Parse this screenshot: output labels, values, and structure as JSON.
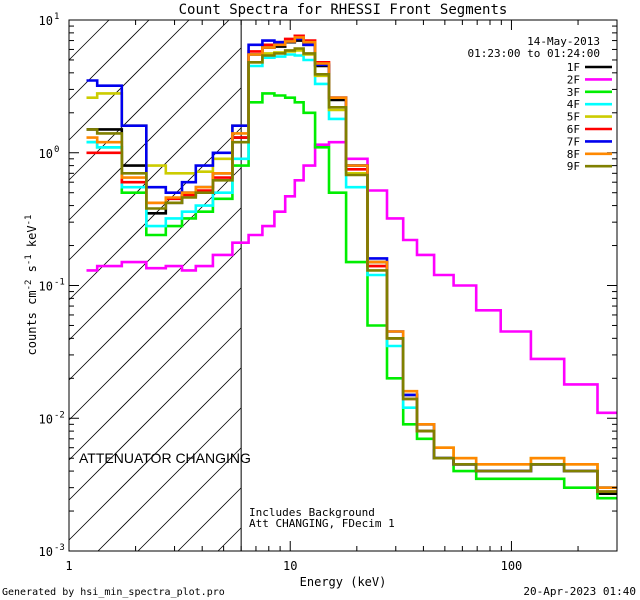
{
  "chart_data": {
    "type": "line",
    "title": "Count Spectra for RHESSI Front Segments",
    "xlabel": "Energy (keV)",
    "ylabel_parts": [
      "counts cm",
      "-2",
      " s",
      "-1",
      " keV",
      "-1"
    ],
    "xscale": "log",
    "yscale": "log",
    "xlim": [
      1,
      300
    ],
    "ylim": [
      0.001,
      10
    ],
    "x_ticks": [
      {
        "value": 1,
        "label": "1"
      },
      {
        "value": 10,
        "label": "10"
      },
      {
        "value": 100,
        "label": "100"
      }
    ],
    "y_ticks": [
      {
        "value": 0.001,
        "base": "10",
        "exp": "-3"
      },
      {
        "value": 0.01,
        "base": "10",
        "exp": "-2"
      },
      {
        "value": 0.1,
        "base": "10",
        "exp": "-1"
      },
      {
        "value": 1,
        "base": "10",
        "exp": "0"
      },
      {
        "value": 10,
        "base": "10",
        "exp": "1"
      }
    ],
    "date": "14-May-2013",
    "time_range": "01:23:00 to 01:24:00",
    "hatched_region": {
      "x_from": 1,
      "x_to": 6
    },
    "annotation": "ATTENUATOR CHANGING",
    "annotation_color": "#e00000",
    "footnote_lines": [
      "Includes Background",
      "Att CHANGING, FDecim 1"
    ],
    "series": [
      {
        "name": "1F",
        "color": "#000000",
        "x": [
          1.2,
          1.5,
          2,
          2.5,
          3,
          3.5,
          4,
          5,
          6,
          7,
          8,
          9,
          10,
          11,
          12,
          14,
          16,
          20,
          25,
          30,
          35,
          40,
          50,
          60,
          80,
          100,
          150,
          200,
          300
        ],
        "y": [
          1.5,
          1.5,
          0.8,
          0.35,
          0.42,
          0.5,
          0.55,
          0.7,
          1.3,
          5.5,
          6.2,
          6.3,
          6.8,
          7.0,
          6.5,
          4.5,
          2.5,
          0.8,
          0.15,
          0.04,
          0.015,
          0.008,
          0.005,
          0.0045,
          0.004,
          0.004,
          0.0045,
          0.004,
          0.0027
        ]
      },
      {
        "name": "2F",
        "color": "#ff00ff",
        "x": [
          1.2,
          1.5,
          2,
          2.5,
          3,
          3.5,
          4,
          5,
          6,
          7,
          8,
          9,
          10,
          11,
          12,
          14,
          16,
          20,
          25,
          30,
          35,
          40,
          50,
          60,
          80,
          100,
          150,
          200,
          300
        ],
        "y": [
          0.13,
          0.14,
          0.15,
          0.135,
          0.14,
          0.13,
          0.14,
          0.17,
          0.21,
          0.24,
          0.28,
          0.36,
          0.47,
          0.62,
          0.8,
          1.15,
          1.2,
          0.9,
          0.52,
          0.32,
          0.22,
          0.17,
          0.12,
          0.1,
          0.065,
          0.045,
          0.028,
          0.018,
          0.011
        ]
      },
      {
        "name": "3F",
        "color": "#00ee00",
        "x": [
          1.2,
          1.5,
          2,
          2.5,
          3,
          3.5,
          4,
          5,
          6,
          7,
          8,
          9,
          10,
          11,
          12,
          14,
          16,
          20,
          25,
          30,
          35,
          40,
          50,
          60,
          80,
          100,
          150,
          200,
          300
        ],
        "y": [
          1.2,
          1.1,
          0.5,
          0.24,
          0.28,
          0.32,
          0.36,
          0.45,
          0.8,
          2.4,
          2.8,
          2.7,
          2.6,
          2.4,
          2.0,
          1.1,
          0.5,
          0.15,
          0.05,
          0.02,
          0.009,
          0.007,
          0.005,
          0.004,
          0.0035,
          0.0035,
          0.0035,
          0.003,
          0.0025
        ]
      },
      {
        "name": "4F",
        "color": "#00ffff",
        "x": [
          1.2,
          1.5,
          2,
          2.5,
          3,
          3.5,
          4,
          5,
          6,
          7,
          8,
          9,
          10,
          11,
          12,
          14,
          16,
          20,
          25,
          30,
          35,
          40,
          50,
          60,
          80,
          100,
          150,
          200,
          300
        ],
        "y": [
          1.2,
          1.1,
          0.55,
          0.28,
          0.32,
          0.36,
          0.4,
          0.5,
          0.9,
          4.5,
          5.2,
          5.3,
          5.5,
          5.4,
          5.0,
          3.3,
          1.8,
          0.55,
          0.12,
          0.035,
          0.012,
          0.008,
          0.005,
          0.0045,
          0.004,
          0.004,
          0.0045,
          0.004,
          0.003
        ]
      },
      {
        "name": "5F",
        "color": "#cccc00",
        "x": [
          1.2,
          1.5,
          2,
          2.5,
          3,
          3.5,
          4,
          5,
          6,
          7,
          8,
          9,
          10,
          11,
          12,
          14,
          16,
          20,
          25,
          30,
          35,
          40,
          50,
          60,
          80,
          100,
          150,
          200,
          300
        ],
        "y": [
          2.6,
          2.8,
          1.6,
          0.8,
          0.7,
          0.7,
          0.72,
          0.9,
          1.6,
          4.8,
          5.6,
          5.7,
          5.8,
          5.9,
          5.5,
          3.8,
          2.1,
          0.7,
          0.14,
          0.04,
          0.015,
          0.009,
          0.006,
          0.005,
          0.0045,
          0.0045,
          0.005,
          0.0045,
          0.003
        ]
      },
      {
        "name": "6F",
        "color": "#ff0000",
        "x": [
          1.2,
          1.5,
          2,
          2.5,
          3,
          3.5,
          4,
          5,
          6,
          7,
          8,
          9,
          10,
          11,
          12,
          14,
          16,
          20,
          25,
          30,
          35,
          40,
          50,
          60,
          80,
          100,
          150,
          200,
          300
        ],
        "y": [
          1.0,
          1.0,
          0.6,
          0.42,
          0.45,
          0.48,
          0.52,
          0.65,
          1.3,
          5.8,
          6.5,
          6.8,
          7.2,
          7.6,
          7.0,
          4.8,
          2.6,
          0.75,
          0.14,
          0.04,
          0.014,
          0.008,
          0.005,
          0.0045,
          0.004,
          0.004,
          0.0045,
          0.004,
          0.0028
        ]
      },
      {
        "name": "7F",
        "color": "#0000ee",
        "x": [
          1.2,
          1.5,
          2,
          2.5,
          3,
          3.5,
          4,
          5,
          6,
          7,
          8,
          9,
          10,
          11,
          12,
          14,
          16,
          20,
          25,
          30,
          35,
          40,
          50,
          60,
          80,
          100,
          150,
          200,
          300
        ],
        "y": [
          3.5,
          3.2,
          1.6,
          0.55,
          0.5,
          0.6,
          0.8,
          1.0,
          1.6,
          6.5,
          7.0,
          6.8,
          6.9,
          7.2,
          6.5,
          4.6,
          2.6,
          0.8,
          0.16,
          0.045,
          0.015,
          0.009,
          0.005,
          0.0045,
          0.004,
          0.004,
          0.0045,
          0.004,
          0.003
        ]
      },
      {
        "name": "8F",
        "color": "#ff8800",
        "x": [
          1.2,
          1.5,
          2,
          2.5,
          3,
          3.5,
          4,
          5,
          6,
          7,
          8,
          9,
          10,
          11,
          12,
          14,
          16,
          20,
          25,
          30,
          35,
          40,
          50,
          60,
          80,
          100,
          150,
          200,
          300
        ],
        "y": [
          1.3,
          1.2,
          0.65,
          0.42,
          0.46,
          0.5,
          0.55,
          0.7,
          1.4,
          5.5,
          6.2,
          6.5,
          6.9,
          7.4,
          6.8,
          4.7,
          2.6,
          0.8,
          0.15,
          0.045,
          0.016,
          0.009,
          0.006,
          0.005,
          0.0045,
          0.0045,
          0.005,
          0.0045,
          0.003
        ]
      },
      {
        "name": "9F",
        "color": "#808000",
        "x": [
          1.2,
          1.5,
          2,
          2.5,
          3,
          3.5,
          4,
          5,
          6,
          7,
          8,
          9,
          10,
          11,
          12,
          14,
          16,
          20,
          25,
          30,
          35,
          40,
          50,
          60,
          80,
          100,
          150,
          200,
          300
        ],
        "y": [
          1.5,
          1.4,
          0.7,
          0.38,
          0.42,
          0.46,
          0.5,
          0.62,
          1.2,
          4.8,
          5.4,
          5.6,
          5.9,
          6.1,
          5.6,
          3.9,
          2.2,
          0.68,
          0.13,
          0.04,
          0.014,
          0.008,
          0.005,
          0.0045,
          0.004,
          0.004,
          0.0045,
          0.004,
          0.0028
        ]
      }
    ]
  },
  "footer": {
    "generated_by": "Generated by hsi_min_spectra_plot.pro",
    "timestamp": "20-Apr-2023 01:40"
  }
}
